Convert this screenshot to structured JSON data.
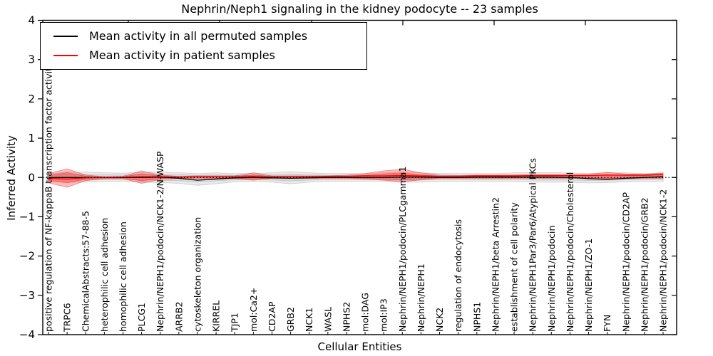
{
  "title": "Nephrin/Neph1 signaling in the kidney podocyte -- 23 samples",
  "legend": {
    "items": [
      {
        "label": "Mean activity in all permuted samples",
        "color": "#000000"
      },
      {
        "label": "Mean activity in patient samples",
        "color": "#ff0000"
      }
    ]
  },
  "chart_data": {
    "type": "line",
    "title": "Nephrin/Neph1 signaling in the kidney podocyte -- 23 samples",
    "xlabel": "Cellular Entities",
    "ylabel": "Inferred Activity",
    "ylim": [
      -4,
      4
    ],
    "yticks": [
      -4,
      -3,
      -2,
      -1,
      0,
      1,
      2,
      3,
      4
    ],
    "grid": false,
    "legend_position": "upper left",
    "categories": [
      "positive regulation of NF-kappaB transcription factor activity",
      "TRPC6",
      "ChemicalAbstracts:57-88-5",
      "heterophilic cell adhesion",
      "homophilic cell adhesion",
      "PLCG1",
      "Nephrin/NEPH1/podocin/NCK1-2/N-WASP",
      "ARRB2",
      "cytoskeleton organization",
      "KIRREL",
      "TJP1",
      "mol:Ca2+",
      "CD2AP",
      "GRB2",
      "NCK1",
      "WASL",
      "NPHS2",
      "mol:DAG",
      "mol:IP3",
      "Nephrin/NEPH1/podocin/PLCgamma1",
      "Nephrin/NEPH1",
      "NCK2",
      "regulation of endocytosis",
      "NPHS1",
      "Nephrin/NEPH1/beta Arrestin2",
      "establishment of cell polarity",
      "Nephrin/NEPH1Par3/Par6/Atypical PKCs",
      "Nephrin/NEPH1/podocin",
      "Nephrin/NEPH1/podocin/Cholesterol",
      "Nephrin/NEPH1/ZO-1",
      "FYN",
      "Nephrin/NEPH1/podocin/CD2AP",
      "Nephrin/NEPH1/podocin/GRB2",
      "Nephrin/NEPH1/podocin/NCK1-2"
    ],
    "series": [
      {
        "name": "mean-permuted-line",
        "label": "Mean activity in all permuted samples",
        "color": "#000000",
        "values": [
          0,
          0,
          0,
          0,
          0,
          0,
          0.01,
          -0.02,
          -0.07,
          -0.04,
          -0.01,
          0,
          -0.01,
          -0.02,
          -0.01,
          0,
          0,
          0,
          0,
          0.01,
          0.01,
          0,
          0,
          0.01,
          0.01,
          0.01,
          0.01,
          0.01,
          0,
          -0.03,
          -0.05,
          -0.02,
          0,
          0.02
        ]
      },
      {
        "name": "mean-patient-line",
        "label": "Mean activity in patient samples",
        "color": "#ff0000",
        "values": [
          -0.02,
          -0.04,
          -0.01,
          0,
          0.01,
          0.02,
          0.02,
          0.01,
          0.02,
          0.02,
          0.02,
          0.03,
          0.02,
          0.02,
          0.03,
          0.03,
          0.03,
          0.04,
          0.04,
          0.05,
          0.04,
          0.03,
          0.03,
          0.04,
          0.04,
          0.04,
          0.05,
          0.05,
          0.05,
          0.05,
          0.06,
          0.06,
          0.06,
          0.08
        ]
      }
    ],
    "bands": [
      {
        "name": "permuted-range",
        "fill": "#aaaaaa",
        "edge": "#999999",
        "opacity": 0.25,
        "upper": [
          0.1,
          0.13,
          0.14,
          0.12,
          0.11,
          0.13,
          0.14,
          0.12,
          0.1,
          0.12,
          0.1,
          0.1,
          0.12,
          0.15,
          0.12,
          0.1,
          0.1,
          0.1,
          0.12,
          0.14,
          0.12,
          0.1,
          0.1,
          0.1,
          0.1,
          0.12,
          0.12,
          0.12,
          0.12,
          0.1,
          0.12,
          0.12,
          0.1,
          0.1
        ],
        "lower": [
          -0.1,
          -0.12,
          -0.12,
          -0.1,
          -0.1,
          -0.12,
          -0.13,
          -0.15,
          -0.2,
          -0.16,
          -0.11,
          -0.1,
          -0.12,
          -0.16,
          -0.12,
          -0.1,
          -0.1,
          -0.1,
          -0.1,
          -0.12,
          -0.12,
          -0.1,
          -0.1,
          -0.1,
          -0.1,
          -0.1,
          -0.12,
          -0.12,
          -0.12,
          -0.14,
          -0.13,
          -0.11,
          -0.1,
          -0.1
        ]
      },
      {
        "name": "patient-range",
        "fill": "#ff2a2a",
        "edge": "#cc2222",
        "opacity": 0.32,
        "upper": [
          0.1,
          0.22,
          0.06,
          0.02,
          0.03,
          0.17,
          0.06,
          0.03,
          0.04,
          0.04,
          0.04,
          0.12,
          0.04,
          0.04,
          0.04,
          0.04,
          0.06,
          0.1,
          0.17,
          0.21,
          0.12,
          0.06,
          0.05,
          0.06,
          0.06,
          0.06,
          0.07,
          0.07,
          0.07,
          0.08,
          0.13,
          0.09,
          0.08,
          0.12
        ],
        "lower": [
          -0.14,
          -0.25,
          -0.08,
          -0.03,
          -0.03,
          -0.15,
          -0.05,
          -0.02,
          -0.02,
          -0.02,
          -0.03,
          -0.07,
          -0.02,
          -0.02,
          -0.02,
          -0.02,
          -0.02,
          -0.04,
          -0.07,
          -0.11,
          -0.06,
          -0.02,
          -0.02,
          -0.02,
          -0.02,
          -0.02,
          -0.02,
          -0.02,
          -0.02,
          -0.02,
          -0.05,
          -0.03,
          -0.02,
          -0.02
        ]
      }
    ],
    "zero_line": {
      "y": 0,
      "style": "dotted",
      "color": "#000000"
    }
  }
}
